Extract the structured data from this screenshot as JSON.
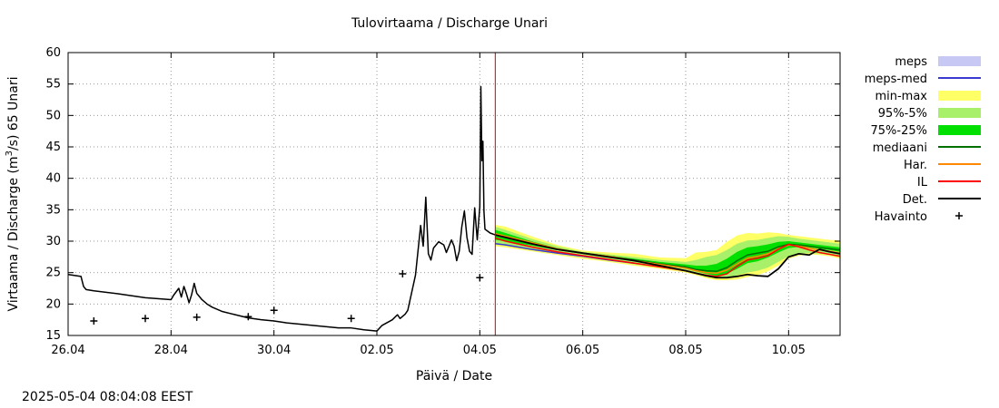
{
  "chart_data": {
    "type": "line",
    "title": "Tulovirtaama / Discharge  Unari",
    "xlabel": "Päivä / Date",
    "ylabel_parts": [
      "Virtaama / Discharge (m",
      "3",
      "/s)  65 Unari"
    ],
    "timestamp": "2025-05-04 08:04:08 EEST",
    "xlim": [
      0,
      15
    ],
    "ylim": [
      15,
      60
    ],
    "xticks": [
      {
        "x": 0,
        "label": "26.04"
      },
      {
        "x": 2,
        "label": "28.04"
      },
      {
        "x": 4,
        "label": "30.04"
      },
      {
        "x": 6,
        "label": "02.05"
      },
      {
        "x": 8,
        "label": "04.05"
      },
      {
        "x": 10,
        "label": "06.05"
      },
      {
        "x": 12,
        "label": "08.05"
      },
      {
        "x": 14,
        "label": "10.05"
      }
    ],
    "yticks": [
      15,
      20,
      25,
      30,
      35,
      40,
      45,
      50,
      55,
      60
    ],
    "grid": true,
    "forecast_time": 8.3,
    "legend": [
      {
        "label": "meps",
        "kind": "box",
        "color": "#c8c8f5"
      },
      {
        "label": "meps-med",
        "kind": "line",
        "color": "#3a3ad0"
      },
      {
        "label": "min-max",
        "kind": "box",
        "color": "#ffff66"
      },
      {
        "label": "95%-5%",
        "kind": "box",
        "color": "#a8f06a"
      },
      {
        "label": "75%-25%",
        "kind": "box",
        "color": "#00e000"
      },
      {
        "label": "mediaani",
        "kind": "line",
        "color": "#007000"
      },
      {
        "label": "Har.",
        "kind": "line",
        "color": "#ff8800"
      },
      {
        "label": "IL",
        "kind": "line",
        "color": "#ff0000"
      },
      {
        "label": "Det.",
        "kind": "line",
        "color": "#000000"
      },
      {
        "label": "Havainto",
        "kind": "marker",
        "color": "#000000"
      }
    ],
    "observations": [
      {
        "x": 0.5,
        "y": 17.3
      },
      {
        "x": 1.5,
        "y": 17.7
      },
      {
        "x": 2.5,
        "y": 17.9
      },
      {
        "x": 3.5,
        "y": 18.0
      },
      {
        "x": 4.0,
        "y": 19.0
      },
      {
        "x": 5.5,
        "y": 17.7
      },
      {
        "x": 6.5,
        "y": 24.8
      },
      {
        "x": 8.0,
        "y": 24.2
      }
    ],
    "history": {
      "x": [
        0,
        0.25,
        0.3,
        0.35,
        0.5,
        1,
        1.5,
        2,
        2.05,
        2.15,
        2.2,
        2.25,
        2.3,
        2.35,
        2.4,
        2.45,
        2.5,
        2.55,
        2.6,
        2.7,
        2.8,
        3,
        3.25,
        3.5,
        3.75,
        4,
        4.25,
        4.5,
        4.75,
        5,
        5.25,
        5.5,
        5.75,
        6,
        6.1,
        6.3,
        6.4,
        6.45,
        6.55,
        6.6,
        6.75,
        6.85,
        6.9,
        6.95,
        7,
        7.05,
        7.1,
        7.2,
        7.3,
        7.35,
        7.4,
        7.45,
        7.5,
        7.55,
        7.6,
        7.65,
        7.7,
        7.75,
        7.8,
        7.85,
        7.9,
        7.95,
        8,
        8.02,
        8.04,
        8.06,
        8.08,
        8.1,
        8.15,
        8.2,
        8.3
      ],
      "y": [
        24.7,
        24.4,
        22.8,
        22.3,
        22.1,
        21.6,
        21.0,
        20.7,
        21.4,
        22.5,
        21.1,
        22.8,
        21.6,
        20.2,
        21.5,
        23.3,
        21.7,
        21.2,
        20.7,
        20.0,
        19.5,
        18.8,
        18.3,
        17.8,
        17.5,
        17.3,
        17.0,
        16.8,
        16.6,
        16.4,
        16.2,
        16.2,
        15.9,
        15.7,
        16.6,
        17.5,
        18.3,
        17.7,
        18.4,
        19.0,
        24.6,
        32.5,
        29.2,
        37.0,
        28.0,
        27.0,
        28.9,
        29.9,
        29.4,
        28.2,
        29.2,
        30.2,
        29.2,
        26.9,
        28.4,
        32.3,
        34.8,
        30.6,
        28.4,
        27.9,
        35.3,
        30.2,
        35.5,
        54.6,
        42.8,
        45.9,
        34.8,
        31.9,
        31.6,
        31.3,
        31.0
      ]
    },
    "forecast": {
      "x": [
        8.3,
        8.5,
        9,
        9.5,
        10,
        10.5,
        11,
        11.5,
        12,
        12.2,
        12.4,
        12.6,
        12.8,
        13,
        13.2,
        13.4,
        13.6,
        13.8,
        14,
        14.2,
        14.4,
        14.6,
        14.8,
        15
      ],
      "min": [
        29.2,
        29.0,
        28.4,
        27.8,
        27.2,
        26.7,
        26.1,
        25.6,
        25.0,
        24.6,
        24.1,
        23.8,
        23.8,
        23.9,
        24.3,
        24.6,
        25.2,
        26.1,
        27.2,
        27.7,
        27.9,
        27.8,
        27.6,
        27.2
      ],
      "max": [
        32.6,
        32.3,
        30.8,
        29.4,
        28.5,
        28.2,
        28.0,
        27.4,
        27.3,
        28.2,
        28.3,
        28.6,
        29.9,
        30.9,
        31.3,
        31.2,
        31.4,
        31.3,
        31.0,
        30.8,
        30.6,
        30.4,
        30.2,
        30.1
      ],
      "p5": [
        29.6,
        29.3,
        28.8,
        28.1,
        27.5,
        27.0,
        26.3,
        25.8,
        25.2,
        24.8,
        24.4,
        24.2,
        24.2,
        24.6,
        25.0,
        25.3,
        25.8,
        26.7,
        27.6,
        28.0,
        28.1,
        28.0,
        27.8,
        27.5
      ],
      "p95": [
        32.3,
        31.8,
        30.4,
        29.2,
        28.3,
        27.9,
        27.5,
        27.0,
        26.7,
        27.0,
        27.5,
        27.8,
        28.6,
        29.6,
        30.1,
        30.2,
        30.5,
        30.8,
        30.7,
        30.4,
        30.2,
        30.0,
        29.8,
        29.6
      ],
      "p25": [
        30.2,
        30.0,
        29.3,
        28.6,
        28.0,
        27.5,
        26.8,
        26.2,
        25.7,
        25.2,
        24.8,
        24.5,
        24.8,
        25.6,
        26.5,
        26.8,
        27.4,
        28.2,
        28.9,
        29.1,
        29.0,
        28.8,
        28.6,
        28.3
      ],
      "p75": [
        31.8,
        31.3,
        30.0,
        28.9,
        28.2,
        27.7,
        27.2,
        26.7,
        26.3,
        26.1,
        26.1,
        26.4,
        27.2,
        28.3,
        29.0,
        29.2,
        29.5,
        29.9,
        30.0,
        29.8,
        29.6,
        29.4,
        29.2,
        29.0
      ],
      "median": [
        31.0,
        30.6,
        29.6,
        28.7,
        28.1,
        27.6,
        27.0,
        26.4,
        25.9,
        25.5,
        25.3,
        25.2,
        25.8,
        26.9,
        27.8,
        28.1,
        28.4,
        29.1,
        29.5,
        29.4,
        29.2,
        29.0,
        28.8,
        28.6
      ],
      "meps_med": [
        29.6,
        29.4,
        28.7,
        28.1,
        27.6,
        27.0,
        26.5
      ],
      "har": [
        31.2,
        30.8,
        29.8,
        28.8,
        28.1,
        27.6,
        26.9,
        26.3,
        25.7,
        25.3,
        25.0,
        24.9,
        25.4,
        26.4,
        27.3,
        27.6,
        28.0,
        28.8,
        29.4,
        29.2,
        28.9,
        28.6,
        28.4,
        28.1
      ],
      "il": [
        30.5,
        30.0,
        29.1,
        28.3,
        27.7,
        27.1,
        26.5,
        25.9,
        25.3,
        24.9,
        24.6,
        24.4,
        24.8,
        26.0,
        27.0,
        27.3,
        27.7,
        28.7,
        29.5,
        29.1,
        28.6,
        28.2,
        27.9,
        27.6
      ],
      "det": [
        31.0,
        30.6,
        29.6,
        28.7,
        28.1,
        27.5,
        26.9,
        26.1,
        25.3,
        24.9,
        24.5,
        24.2,
        24.2,
        24.4,
        24.7,
        24.5,
        24.4,
        25.6,
        27.5,
        28.0,
        27.8,
        28.7,
        28.3,
        28.0
      ]
    }
  }
}
